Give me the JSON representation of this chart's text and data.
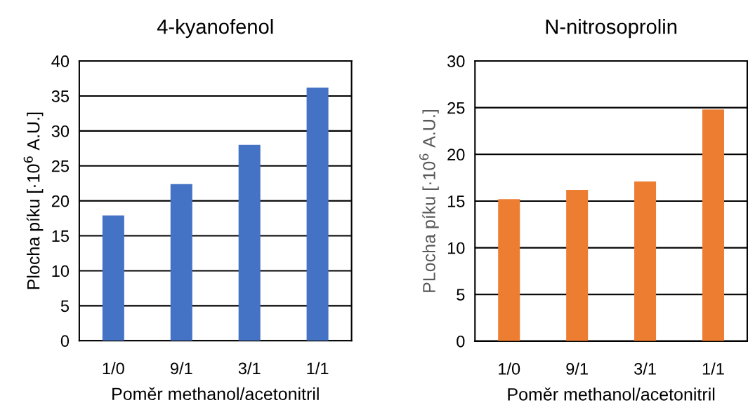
{
  "chart_data": [
    {
      "type": "bar",
      "title": "4-kyanofenol",
      "xlabel": "Poměr methanol/acetonitril",
      "ylabel": "Plocha píku [·10$^{6}$ A.U.]",
      "categories": [
        "1/0",
        "9/1",
        "3/1",
        "1/1"
      ],
      "values": [
        17.9,
        22.4,
        28.0,
        36.2
      ],
      "color": "#4472c4",
      "ylim": [
        0,
        40
      ],
      "yticks": [
        0,
        5,
        10,
        15,
        20,
        25,
        30,
        35,
        40
      ],
      "grid": "y",
      "legend": false
    },
    {
      "type": "bar",
      "title": "N-nitrosoprolin",
      "xlabel": "Poměr methanol/acetonitril",
      "ylabel": "PLocha píku [·10$^{6}$ A.U.]",
      "categories": [
        "1/0",
        "9/1",
        "3/1",
        "1/1"
      ],
      "values": [
        15.2,
        16.2,
        17.1,
        24.8
      ],
      "color": "#ed7d31",
      "ylim": [
        0,
        30
      ],
      "yticks": [
        0,
        5,
        10,
        15,
        20,
        25,
        30
      ],
      "grid": "y",
      "legend": false
    }
  ]
}
